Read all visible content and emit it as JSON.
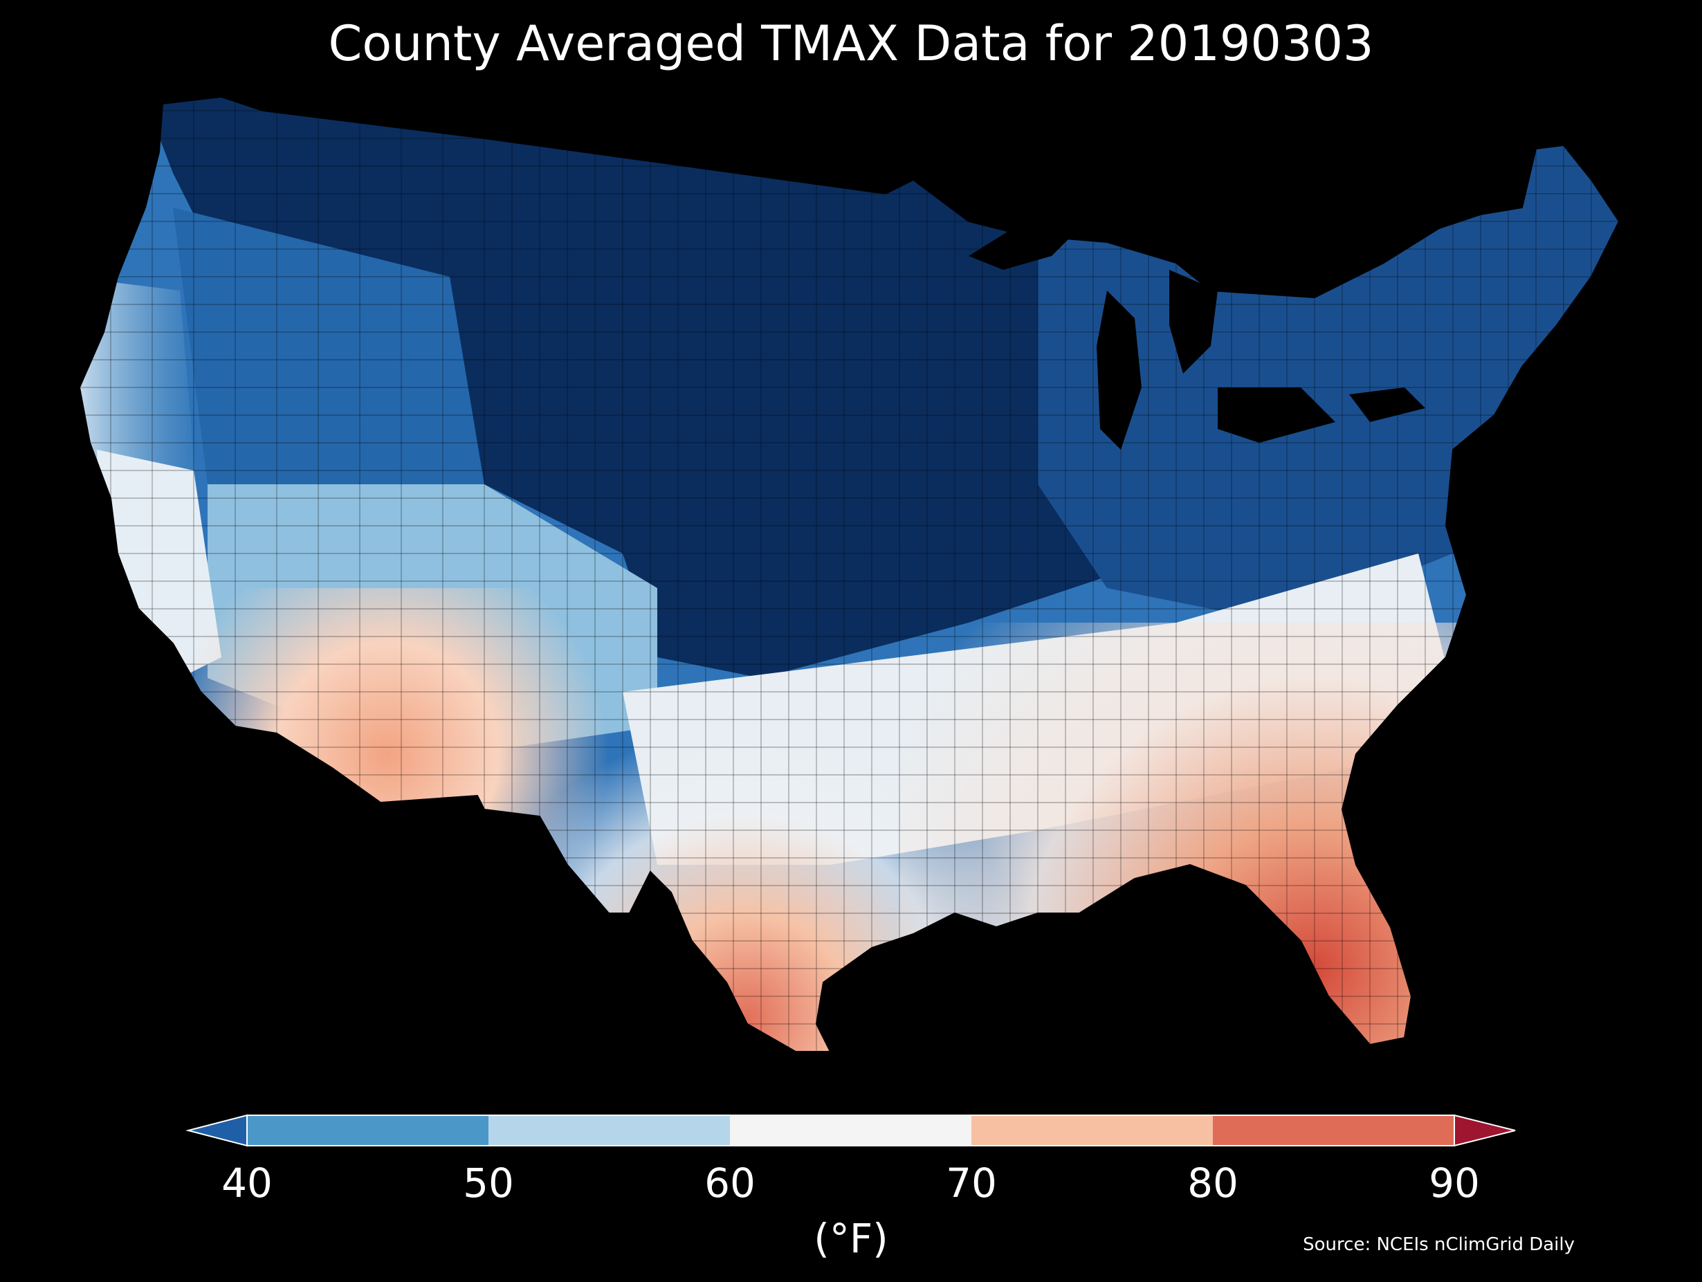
{
  "title": "County Averaged TMAX Data for 20190303",
  "colorbar": {
    "ticks": [
      "40",
      "50",
      "60",
      "70",
      "80",
      "90"
    ],
    "unit": "(°F)",
    "bins": [
      {
        "from": 40,
        "to": 50,
        "color": "#4b97c8"
      },
      {
        "from": 50,
        "to": 60,
        "color": "#b5d6ea"
      },
      {
        "from": 60,
        "to": 70,
        "color": "#f4f4f4"
      },
      {
        "from": 70,
        "to": 80,
        "color": "#f8c0a3"
      },
      {
        "from": 80,
        "to": 90,
        "color": "#de6c56"
      }
    ],
    "under_color": "#1f5fa8",
    "over_color": "#9e1530"
  },
  "source": "Source: NCEIs nClimGrid Daily",
  "map_colors": {
    "very_cold": "#0a2d5e",
    "cold": "#1a4f8f",
    "cool": "#2f74b8",
    "mild": "#8fc0df",
    "neutral": "#e8eef3",
    "warm": "#f6c2a6",
    "hot": "#e0705a"
  }
}
